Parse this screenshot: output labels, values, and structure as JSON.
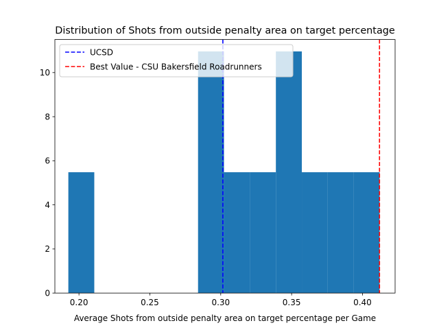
{
  "chart_data": {
    "type": "bar",
    "title": "Distribution of Shots from outside penalty area on target percentage",
    "xlabel": "Average Shots from outside penalty area on target percentage per Game",
    "ylabel": "",
    "xlim": [
      0.183,
      0.423
    ],
    "ylim": [
      0,
      11.5
    ],
    "grid": false,
    "legend_position": "top-left",
    "bar_color": "#1f77b4",
    "x_ticks": [
      {
        "value": 0.2,
        "label": "0.20"
      },
      {
        "value": 0.25,
        "label": "0.25"
      },
      {
        "value": 0.3,
        "label": "0.30"
      },
      {
        "value": 0.35,
        "label": "0.35"
      },
      {
        "value": 0.4,
        "label": "0.40"
      }
    ],
    "y_ticks": [
      {
        "value": 0,
        "label": "0"
      },
      {
        "value": 2,
        "label": "2"
      },
      {
        "value": 4,
        "label": "4"
      },
      {
        "value": 6,
        "label": "6"
      },
      {
        "value": 8,
        "label": "8"
      },
      {
        "value": 10,
        "label": "10"
      }
    ],
    "bins": [
      {
        "x0": 0.1925,
        "x1": 0.2108,
        "value": 5.48
      },
      {
        "x0": 0.2108,
        "x1": 0.2291,
        "value": 0
      },
      {
        "x0": 0.2291,
        "x1": 0.2474,
        "value": 0
      },
      {
        "x0": 0.2474,
        "x1": 0.2657,
        "value": 0
      },
      {
        "x0": 0.2657,
        "x1": 0.284,
        "value": 0
      },
      {
        "x0": 0.284,
        "x1": 0.3023,
        "value": 10.96
      },
      {
        "x0": 0.3023,
        "x1": 0.3206,
        "value": 5.48
      },
      {
        "x0": 0.3206,
        "x1": 0.3389,
        "value": 5.48
      },
      {
        "x0": 0.3389,
        "x1": 0.3572,
        "value": 10.96
      },
      {
        "x0": 0.3572,
        "x1": 0.3755,
        "value": 5.48
      },
      {
        "x0": 0.3755,
        "x1": 0.3938,
        "value": 5.48
      },
      {
        "x0": 0.3938,
        "x1": 0.4121,
        "value": 5.48
      }
    ],
    "reference_lines": [
      {
        "name": "UCSD",
        "x": 0.3015,
        "color": "#0000ff",
        "style": "dashed"
      },
      {
        "name": "Best Value - CSU Bakersfield Roadrunners",
        "x": 0.412,
        "color": "#ff0000",
        "style": "dashed"
      }
    ]
  }
}
